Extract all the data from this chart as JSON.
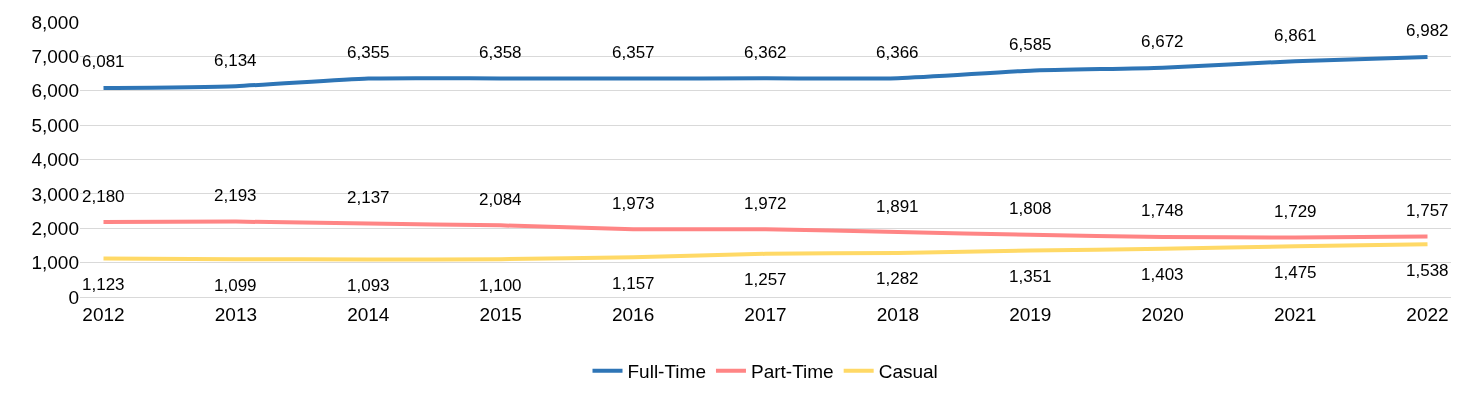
{
  "chart_data": {
    "type": "line",
    "categories": [
      "2012",
      "2013",
      "2014",
      "2015",
      "2016",
      "2017",
      "2018",
      "2019",
      "2020",
      "2021",
      "2022"
    ],
    "series": [
      {
        "name": "Full-Time",
        "color": "#2e75b6",
        "values": [
          6081,
          6134,
          6355,
          6358,
          6357,
          6362,
          6366,
          6585,
          6672,
          6861,
          6982
        ],
        "value_labels": [
          "6,081",
          "6,134",
          "6,355",
          "6,358",
          "6,357",
          "6,362",
          "6,366",
          "6,585",
          "6,672",
          "6,861",
          "6,982"
        ]
      },
      {
        "name": "Part-Time",
        "color": "#ff8585",
        "values": [
          2180,
          2193,
          2137,
          2084,
          1973,
          1972,
          1891,
          1808,
          1748,
          1729,
          1757
        ],
        "value_labels": [
          "2,180",
          "2,193",
          "2,137",
          "2,084",
          "1,973",
          "1,972",
          "1,891",
          "1,808",
          "1,748",
          "1,729",
          "1,757"
        ]
      },
      {
        "name": "Casual",
        "color": "#ffd966",
        "values": [
          1123,
          1099,
          1093,
          1100,
          1157,
          1257,
          1282,
          1351,
          1403,
          1475,
          1538
        ],
        "value_labels": [
          "1,123",
          "1,099",
          "1,093",
          "1,100",
          "1,157",
          "1,257",
          "1,282",
          "1,351",
          "1,403",
          "1,475",
          "1,538"
        ]
      }
    ],
    "ylim": [
      0,
      8000
    ],
    "yticks": [
      {
        "value": 0,
        "label": "0"
      },
      {
        "value": 1000,
        "label": "1,000"
      },
      {
        "value": 2000,
        "label": "2,000"
      },
      {
        "value": 3000,
        "label": "3,000"
      },
      {
        "value": 4000,
        "label": "4,000"
      },
      {
        "value": 5000,
        "label": "5,000"
      },
      {
        "value": 6000,
        "label": "6,000"
      },
      {
        "value": 7000,
        "label": "7,000"
      },
      {
        "value": 8000,
        "label": "8,000"
      }
    ],
    "grid": "y",
    "legend": "bottom",
    "marker": "none",
    "line_style": "solid"
  }
}
